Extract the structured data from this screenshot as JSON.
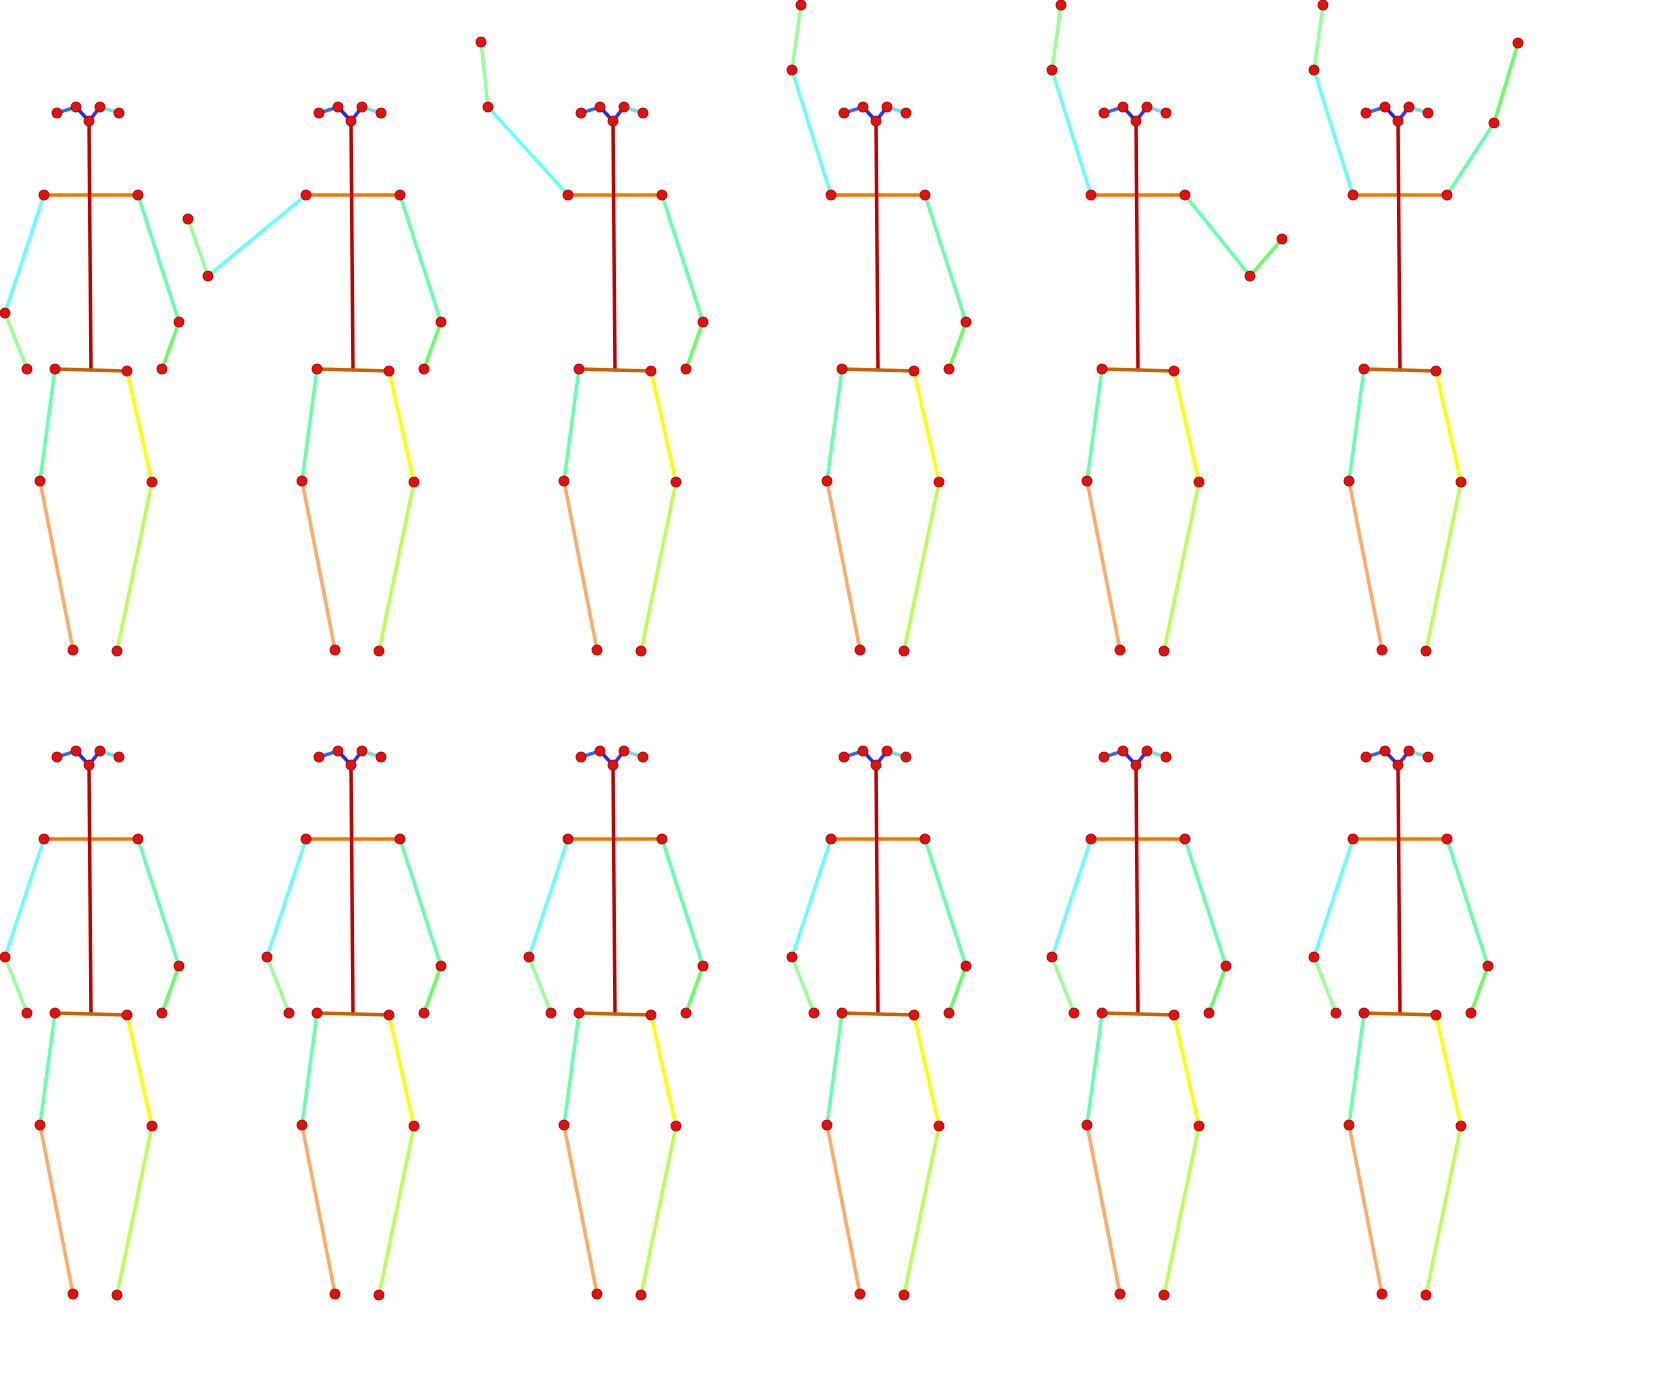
{
  "legend": "",
  "joint_color": "#e0120f",
  "bone_colors": {
    "head_left_outer": "#2a6cf0",
    "head_left_inner": "#1f2fe0",
    "head_right_inner": "#3030ff",
    "head_right_outer": "#6fe0e0",
    "spine": "#c00000",
    "shoulders": "#f07800",
    "hips": "#c86400",
    "left_upper_arm": "#66ffff",
    "left_forearm": "#99ff99",
    "right_upper_arm": "#66ffaa",
    "right_forearm": "#66ff66",
    "left_thigh": "#66ffaa",
    "left_shin": "#ffaa66",
    "right_thigh": "#ffff00",
    "right_shin": "#bbff55"
  },
  "poses": [
    {
      "row": 1,
      "col": 1,
      "left_arm": "down",
      "right_arm": "down"
    },
    {
      "row": 1,
      "col": 2,
      "left_arm": "extended-side",
      "right_arm": "down"
    },
    {
      "row": 1,
      "col": 3,
      "left_arm": "raised-diagonal",
      "right_arm": "down"
    },
    {
      "row": 1,
      "col": 4,
      "left_arm": "raised-up",
      "right_arm": "down"
    },
    {
      "row": 1,
      "col": 5,
      "left_arm": "raised-up",
      "right_arm": "bent-out"
    },
    {
      "row": 1,
      "col": 6,
      "left_arm": "raised-up",
      "right_arm": "raised-up"
    },
    {
      "row": 2,
      "col": 1,
      "left_arm": "down",
      "right_arm": "down"
    },
    {
      "row": 2,
      "col": 2,
      "left_arm": "down",
      "right_arm": "down"
    },
    {
      "row": 2,
      "col": 3,
      "left_arm": "down",
      "right_arm": "down"
    },
    {
      "row": 2,
      "col": 4,
      "left_arm": "down",
      "right_arm": "down"
    },
    {
      "row": 2,
      "col": 5,
      "left_arm": "down",
      "right_arm": "down"
    },
    {
      "row": 2,
      "col": 6,
      "left_arm": "down",
      "right_arm": "down"
    }
  ]
}
